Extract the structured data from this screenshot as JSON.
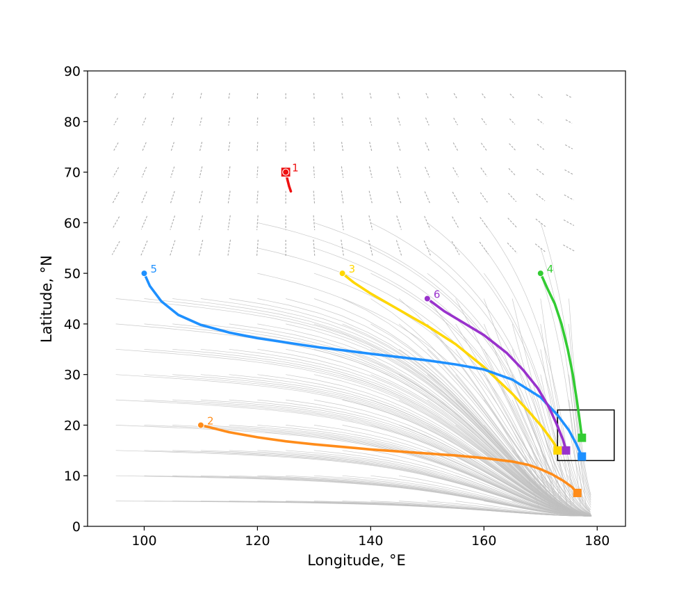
{
  "chart_data": {
    "type": "line",
    "title": "",
    "xlabel": "Longitude, °E",
    "ylabel": "Latitude, °N",
    "xlim": [
      90,
      185
    ],
    "ylim": [
      0,
      90
    ],
    "xticks": [
      "100",
      "120",
      "140",
      "160",
      "180"
    ],
    "yticks": [
      "0",
      "10",
      "20",
      "30",
      "40",
      "50",
      "60",
      "70",
      "80",
      "90"
    ],
    "xtick_values": [
      100,
      120,
      140,
      160,
      180
    ],
    "ytick_values": [
      0,
      10,
      20,
      30,
      40,
      50,
      60,
      70,
      80,
      90
    ],
    "grid": false,
    "background_flow": {
      "description_color": "#c0c0c0",
      "streamline_starts_lat": [
        5,
        10,
        15,
        20,
        25,
        30,
        35,
        40,
        45
      ],
      "streamline_start_lon": [
        95,
        100,
        105,
        110,
        115,
        120,
        125,
        130,
        135,
        140,
        145,
        150,
        155,
        160,
        165,
        170,
        175
      ]
    },
    "target_box": {
      "lon": [
        173,
        183
      ],
      "lat": [
        13,
        23
      ]
    },
    "series": [
      {
        "name": "1",
        "color": "#ee1111",
        "start_marker": "circle",
        "end_marker": "square",
        "x": [
          125.0,
          125.3,
          125.6,
          125.9
        ],
        "y": [
          70.0,
          68.5,
          67.2,
          66.2
        ]
      },
      {
        "name": "2",
        "color": "#ff8c1a",
        "start_marker": "circle",
        "end_marker": "square",
        "x": [
          110,
          115,
          120,
          125,
          130,
          135,
          140,
          145,
          150,
          155,
          160,
          165,
          168,
          170,
          172,
          174,
          175.5,
          176.5
        ],
        "y": [
          20.0,
          18.6,
          17.6,
          16.8,
          16.2,
          15.7,
          15.2,
          14.8,
          14.4,
          14.0,
          13.5,
          12.8,
          12.1,
          11.3,
          10.3,
          9.0,
          7.8,
          6.6
        ]
      },
      {
        "name": "3",
        "color": "#ffd700",
        "start_marker": "circle",
        "end_marker": "square",
        "x": [
          135,
          137,
          140,
          145,
          150,
          155,
          160,
          165,
          168,
          170,
          171.5,
          172.5,
          173.0
        ],
        "y": [
          50.0,
          48.2,
          46.0,
          42.8,
          39.6,
          36.0,
          31.5,
          26.2,
          22.6,
          20.0,
          17.8,
          16.2,
          15.0
        ]
      },
      {
        "name": "4",
        "color": "#33cc33",
        "start_marker": "circle",
        "end_marker": "square",
        "x": [
          170,
          171.2,
          172.5,
          173.7,
          174.8,
          175.7,
          176.4,
          176.9,
          177.3
        ],
        "y": [
          50.0,
          47.0,
          44.0,
          40.0,
          35.0,
          30.0,
          25.0,
          21.0,
          17.5
        ]
      },
      {
        "name": "5",
        "color": "#1e90ff",
        "start_marker": "circle",
        "end_marker": "square",
        "x": [
          100,
          101,
          103,
          106,
          110,
          115,
          120,
          130,
          140,
          150,
          155,
          160,
          165,
          170,
          173,
          175,
          176.3,
          177.3
        ],
        "y": [
          50.0,
          47.5,
          44.5,
          41.8,
          39.8,
          38.3,
          37.2,
          35.5,
          34.1,
          32.8,
          32.0,
          31.0,
          29.0,
          25.5,
          22.0,
          19.0,
          16.3,
          13.8
        ]
      },
      {
        "name": "6",
        "color": "#9932cc",
        "start_marker": "circle",
        "end_marker": "square",
        "x": [
          150,
          153,
          156,
          160,
          164,
          167,
          169.5,
          171.5,
          173,
          174.0,
          174.5
        ],
        "y": [
          45.0,
          42.5,
          40.5,
          37.8,
          34.3,
          30.8,
          27.3,
          23.5,
          19.8,
          17.0,
          15.0
        ]
      }
    ]
  }
}
